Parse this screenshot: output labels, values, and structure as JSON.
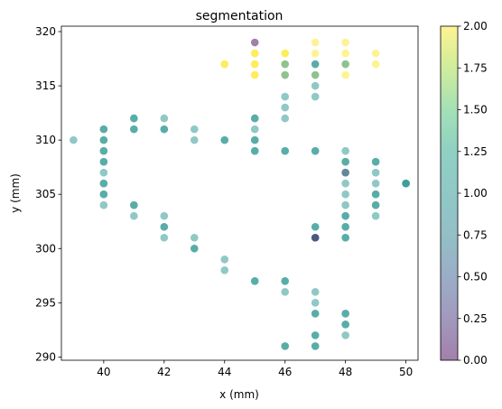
{
  "chart_data": {
    "type": "scatter",
    "title": "segmentation",
    "xlabel": "x (mm)",
    "ylabel": "y (mm)",
    "xlim": [
      38.6,
      50.4
    ],
    "ylim": [
      289.7,
      320.5
    ],
    "xticks": [
      40,
      42,
      44,
      46,
      48,
      50
    ],
    "yticks": [
      290,
      295,
      300,
      305,
      310,
      315,
      320
    ],
    "grid": false,
    "colorbar": {
      "colormap": "viridis",
      "alpha": 0.5,
      "range": [
        0.0,
        2.0
      ],
      "ticks": [
        "0.00",
        "0.25",
        "0.50",
        "0.75",
        "1.00",
        "1.25",
        "1.50",
        "1.75",
        "2.00"
      ]
    },
    "points": [
      {
        "x": 39,
        "y": 310,
        "c": 1
      },
      {
        "x": 40,
        "y": 311,
        "c": 1
      },
      {
        "x": 40,
        "y": 311,
        "c": 1
      },
      {
        "x": 40,
        "y": 310,
        "c": 1
      },
      {
        "x": 40,
        "y": 310,
        "c": 1
      },
      {
        "x": 40,
        "y": 309,
        "c": 1
      },
      {
        "x": 40,
        "y": 309,
        "c": 1
      },
      {
        "x": 40,
        "y": 308,
        "c": 1
      },
      {
        "x": 40,
        "y": 308,
        "c": 1
      },
      {
        "x": 40,
        "y": 307,
        "c": 1
      },
      {
        "x": 40,
        "y": 306,
        "c": 1
      },
      {
        "x": 40,
        "y": 306,
        "c": 1
      },
      {
        "x": 40,
        "y": 305,
        "c": 1
      },
      {
        "x": 40,
        "y": 305,
        "c": 1
      },
      {
        "x": 40,
        "y": 304,
        "c": 1
      },
      {
        "x": 41,
        "y": 312,
        "c": 1
      },
      {
        "x": 41,
        "y": 312,
        "c": 1
      },
      {
        "x": 41,
        "y": 311,
        "c": 1
      },
      {
        "x": 41,
        "y": 311,
        "c": 1
      },
      {
        "x": 41,
        "y": 304,
        "c": 1
      },
      {
        "x": 41,
        "y": 304,
        "c": 1
      },
      {
        "x": 41,
        "y": 303,
        "c": 1
      },
      {
        "x": 42,
        "y": 312,
        "c": 1
      },
      {
        "x": 42,
        "y": 311,
        "c": 1
      },
      {
        "x": 42,
        "y": 311,
        "c": 1
      },
      {
        "x": 42,
        "y": 303,
        "c": 1
      },
      {
        "x": 42,
        "y": 302,
        "c": 1
      },
      {
        "x": 42,
        "y": 302,
        "c": 1
      },
      {
        "x": 42,
        "y": 301,
        "c": 1
      },
      {
        "x": 43,
        "y": 311,
        "c": 1
      },
      {
        "x": 43,
        "y": 310,
        "c": 1
      },
      {
        "x": 43,
        "y": 301,
        "c": 1
      },
      {
        "x": 43,
        "y": 300,
        "c": 1
      },
      {
        "x": 43,
        "y": 300,
        "c": 1
      },
      {
        "x": 44,
        "y": 317,
        "c": 2
      },
      {
        "x": 44,
        "y": 317,
        "c": 2
      },
      {
        "x": 44,
        "y": 310,
        "c": 1
      },
      {
        "x": 44,
        "y": 310,
        "c": 1
      },
      {
        "x": 44,
        "y": 299,
        "c": 1
      },
      {
        "x": 44,
        "y": 298,
        "c": 1
      },
      {
        "x": 45,
        "y": 319,
        "c": 0
      },
      {
        "x": 45,
        "y": 318,
        "c": 2
      },
      {
        "x": 45,
        "y": 318,
        "c": 2
      },
      {
        "x": 45,
        "y": 317,
        "c": 2
      },
      {
        "x": 45,
        "y": 317,
        "c": 2
      },
      {
        "x": 45,
        "y": 316,
        "c": 2
      },
      {
        "x": 45,
        "y": 316,
        "c": 2
      },
      {
        "x": 45,
        "y": 312,
        "c": 1
      },
      {
        "x": 45,
        "y": 312,
        "c": 1
      },
      {
        "x": 45,
        "y": 311,
        "c": 1
      },
      {
        "x": 45,
        "y": 310,
        "c": 1
      },
      {
        "x": 45,
        "y": 310,
        "c": 1
      },
      {
        "x": 45,
        "y": 309,
        "c": 1
      },
      {
        "x": 45,
        "y": 309,
        "c": 1
      },
      {
        "x": 45,
        "y": 297,
        "c": 1
      },
      {
        "x": 45,
        "y": 297,
        "c": 1
      },
      {
        "x": 46,
        "y": 318,
        "c": 2
      },
      {
        "x": 46,
        "y": 318,
        "c": 2
      },
      {
        "x": 46,
        "y": 317,
        "c": 2
      },
      {
        "x": 46,
        "y": 317,
        "c": 1
      },
      {
        "x": 46,
        "y": 316,
        "c": 2
      },
      {
        "x": 46,
        "y": 316,
        "c": 1
      },
      {
        "x": 46,
        "y": 314,
        "c": 1
      },
      {
        "x": 46,
        "y": 313,
        "c": 1
      },
      {
        "x": 46,
        "y": 312,
        "c": 1
      },
      {
        "x": 46,
        "y": 309,
        "c": 1
      },
      {
        "x": 46,
        "y": 309,
        "c": 1
      },
      {
        "x": 46,
        "y": 297,
        "c": 1
      },
      {
        "x": 46,
        "y": 297,
        "c": 1
      },
      {
        "x": 46,
        "y": 296,
        "c": 1
      },
      {
        "x": 46,
        "y": 291,
        "c": 1
      },
      {
        "x": 46,
        "y": 291,
        "c": 1
      },
      {
        "x": 47,
        "y": 319,
        "c": 2
      },
      {
        "x": 47,
        "y": 318,
        "c": 2
      },
      {
        "x": 47,
        "y": 317,
        "c": 1
      },
      {
        "x": 47,
        "y": 317,
        "c": 1
      },
      {
        "x": 47,
        "y": 316,
        "c": 2
      },
      {
        "x": 47,
        "y": 316,
        "c": 1
      },
      {
        "x": 47,
        "y": 315,
        "c": 1
      },
      {
        "x": 47,
        "y": 314,
        "c": 1
      },
      {
        "x": 47,
        "y": 309,
        "c": 1
      },
      {
        "x": 47,
        "y": 309,
        "c": 1
      },
      {
        "x": 47,
        "y": 302,
        "c": 1
      },
      {
        "x": 47,
        "y": 302,
        "c": 1
      },
      {
        "x": 47,
        "y": 301,
        "c": 1
      },
      {
        "x": 47,
        "y": 301,
        "c": 1
      },
      {
        "x": 47,
        "y": 301,
        "c": 0
      },
      {
        "x": 47,
        "y": 296,
        "c": 1
      },
      {
        "x": 47,
        "y": 295,
        "c": 1
      },
      {
        "x": 47,
        "y": 294,
        "c": 1
      },
      {
        "x": 47,
        "y": 294,
        "c": 1
      },
      {
        "x": 47,
        "y": 292,
        "c": 1
      },
      {
        "x": 47,
        "y": 292,
        "c": 1
      },
      {
        "x": 47,
        "y": 291,
        "c": 1
      },
      {
        "x": 47,
        "y": 291,
        "c": 1
      },
      {
        "x": 48,
        "y": 319,
        "c": 2
      },
      {
        "x": 48,
        "y": 318,
        "c": 2
      },
      {
        "x": 48,
        "y": 317,
        "c": 2
      },
      {
        "x": 48,
        "y": 317,
        "c": 1
      },
      {
        "x": 48,
        "y": 316,
        "c": 2
      },
      {
        "x": 48,
        "y": 309,
        "c": 1
      },
      {
        "x": 48,
        "y": 308,
        "c": 1
      },
      {
        "x": 48,
        "y": 308,
        "c": 1
      },
      {
        "x": 48,
        "y": 307,
        "c": 0
      },
      {
        "x": 48,
        "y": 307,
        "c": 1
      },
      {
        "x": 48,
        "y": 306,
        "c": 1
      },
      {
        "x": 48,
        "y": 305,
        "c": 1
      },
      {
        "x": 48,
        "y": 304,
        "c": 1
      },
      {
        "x": 48,
        "y": 303,
        "c": 1
      },
      {
        "x": 48,
        "y": 303,
        "c": 1
      },
      {
        "x": 48,
        "y": 302,
        "c": 1
      },
      {
        "x": 48,
        "y": 302,
        "c": 1
      },
      {
        "x": 48,
        "y": 301,
        "c": 1
      },
      {
        "x": 48,
        "y": 301,
        "c": 1
      },
      {
        "x": 48,
        "y": 294,
        "c": 1
      },
      {
        "x": 48,
        "y": 294,
        "c": 1
      },
      {
        "x": 48,
        "y": 293,
        "c": 1
      },
      {
        "x": 48,
        "y": 293,
        "c": 1
      },
      {
        "x": 48,
        "y": 292,
        "c": 1
      },
      {
        "x": 49,
        "y": 318,
        "c": 2
      },
      {
        "x": 49,
        "y": 317,
        "c": 2
      },
      {
        "x": 49,
        "y": 308,
        "c": 1
      },
      {
        "x": 49,
        "y": 308,
        "c": 1
      },
      {
        "x": 49,
        "y": 307,
        "c": 1
      },
      {
        "x": 49,
        "y": 306,
        "c": 1
      },
      {
        "x": 49,
        "y": 305,
        "c": 1
      },
      {
        "x": 49,
        "y": 305,
        "c": 1
      },
      {
        "x": 49,
        "y": 304,
        "c": 1
      },
      {
        "x": 49,
        "y": 304,
        "c": 1
      },
      {
        "x": 49,
        "y": 303,
        "c": 1
      },
      {
        "x": 50,
        "y": 306,
        "c": 1
      },
      {
        "x": 50,
        "y": 306,
        "c": 1
      },
      {
        "x": 50,
        "y": 306,
        "c": 1
      }
    ]
  }
}
